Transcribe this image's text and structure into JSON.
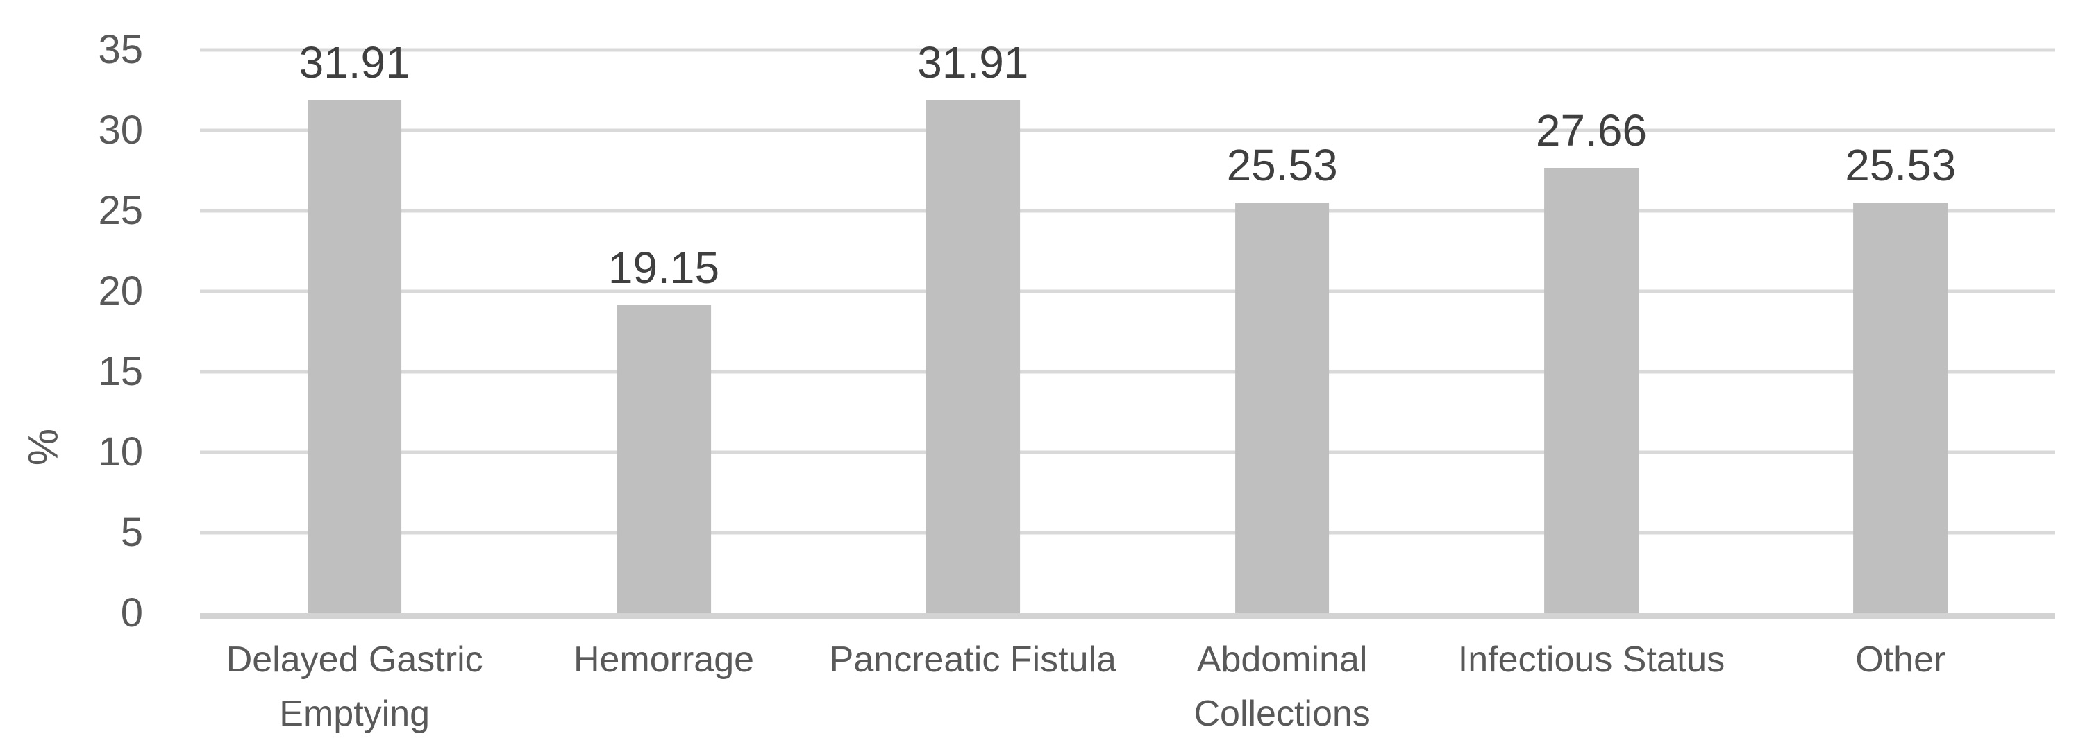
{
  "chart_data": {
    "type": "bar",
    "title": "",
    "xlabel": "",
    "ylabel": "%",
    "categories": [
      "Delayed Gastric Emptying",
      "Hemorrage",
      "Pancreatic Fistula",
      "Abdominal Collections",
      "Infectious Status",
      "Other"
    ],
    "values": [
      31.91,
      19.15,
      31.91,
      25.53,
      27.66,
      25.53
    ],
    "data_labels": [
      "31.91",
      "19.15",
      "31.91",
      "25.53",
      "27.66",
      "25.53"
    ],
    "ylim": [
      0,
      35
    ],
    "yticks": [
      0,
      5,
      10,
      15,
      20,
      25,
      30,
      35
    ],
    "grid": true,
    "legend": false,
    "colors": {
      "bar_fill": "#bfbfbf",
      "gridline": "#d9d9d9",
      "axis_line": "#d3d3d3",
      "tick_text": "#595959",
      "data_label_text": "#3f3f3f",
      "background": "#ffffff"
    }
  }
}
